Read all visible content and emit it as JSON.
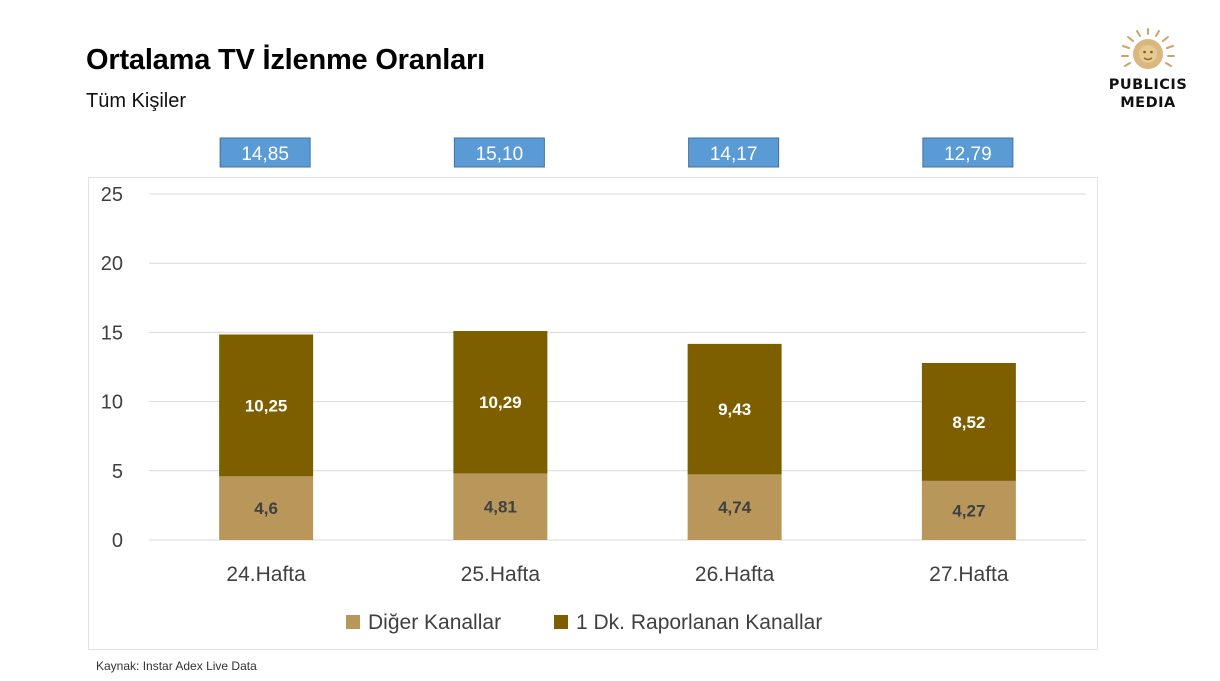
{
  "header": {
    "title": "Ortalama TV İzlenme Oranları",
    "subtitle": "Tüm Kişiler"
  },
  "logo": {
    "line1": "PUBLICIS",
    "line2": "MEDIA"
  },
  "footer": {
    "source": "Kaynak: Instar  Adex Live Data"
  },
  "colors": {
    "diger": "#B9975B",
    "raporlanan": "#7E5F00",
    "total_box": "#5B9BD5",
    "grid": "#D9D9D9",
    "axis_text": "#404040",
    "label_dark": "#404040",
    "label_light": "#FFFFFF"
  },
  "chart_data": {
    "type": "bar",
    "stacked": true,
    "categories": [
      "24.Hafta",
      "25.Hafta",
      "26.Hafta",
      "27.Hafta"
    ],
    "series": [
      {
        "name": "Diğer Kanallar",
        "values": [
          4.6,
          4.81,
          4.74,
          4.27
        ],
        "labels": [
          "4,6",
          "4,81",
          "4,74",
          "4,27"
        ]
      },
      {
        "name": "1 Dk. Raporlanan Kanallar",
        "values": [
          10.25,
          10.29,
          9.43,
          8.52
        ],
        "labels": [
          "10,25",
          "10,29",
          "9,43",
          "8,52"
        ]
      }
    ],
    "totals": [
      14.85,
      15.1,
      14.17,
      12.79
    ],
    "total_labels": [
      "14,85",
      "15,10",
      "14,17",
      "12,79"
    ],
    "yticks": [
      "0",
      "5",
      "10",
      "15",
      "20",
      "25"
    ],
    "ylim": [
      0,
      25
    ],
    "grid": true,
    "legend": "bottom"
  }
}
